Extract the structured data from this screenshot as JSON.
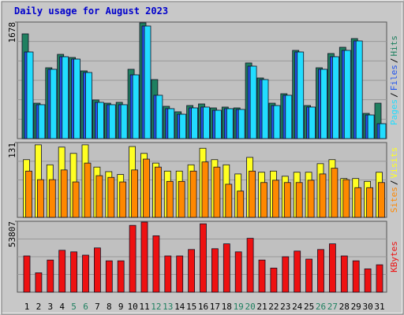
{
  "chart_data": [
    {
      "type": "bar",
      "title": "Daily usage for August 2023",
      "legend_separator": "/",
      "ylim": [
        0,
        1678
      ],
      "yticks": [
        1678
      ],
      "series": [
        {
          "name": "Pages",
          "color": "#22ddff",
          "values": [
            1247,
            488,
            998,
            1179,
            1145,
            952,
            522,
            488,
            488,
            918,
            1621,
            624,
            431,
            351,
            442,
            454,
            408,
            431,
            420,
            1043,
            850,
            476,
            624,
            1247,
            454,
            998,
            1179,
            1270,
            1406,
            340,
            215
          ]
        },
        {
          "name": "Files",
          "color": "#2255ee",
          "values": [
            1247,
            488,
            998,
            1179,
            1145,
            952,
            522,
            488,
            488,
            918,
            1621,
            624,
            431,
            351,
            442,
            454,
            408,
            431,
            420,
            1043,
            850,
            476,
            624,
            1247,
            454,
            998,
            1179,
            1270,
            1406,
            340,
            215
          ]
        },
        {
          "name": "Hits",
          "color": "#1f8060",
          "values": [
            1508,
            510,
            1020,
            1213,
            1168,
            975,
            556,
            510,
            522,
            998,
            1667,
            850,
            465,
            386,
            476,
            499,
            442,
            454,
            442,
            1089,
            873,
            510,
            646,
            1270,
            476,
            1020,
            1225,
            1315,
            1440,
            363,
            510
          ]
        }
      ]
    },
    {
      "type": "bar",
      "legend_separator": "/",
      "ylim": [
        0,
        131
      ],
      "yticks": [
        131
      ],
      "series": [
        {
          "name": "Sites",
          "color": "#ff8800",
          "values": [
            81,
            66,
            66,
            83,
            62,
            95,
            73,
            70,
            62,
            83,
            102,
            88,
            63,
            63,
            81,
            97,
            88,
            58,
            46,
            81,
            61,
            65,
            61,
            61,
            65,
            76,
            86,
            66,
            52,
            52,
            61
          ]
        },
        {
          "name": "Visits",
          "color": "#ffff22",
          "values": [
            101,
            127,
            92,
            123,
            112,
            127,
            88,
            80,
            75,
            124,
            112,
            95,
            81,
            81,
            92,
            121,
            101,
            92,
            76,
            105,
            79,
            81,
            72,
            79,
            79,
            94,
            101,
            68,
            68,
            63,
            79
          ]
        }
      ]
    },
    {
      "type": "bar",
      "ylim": [
        0,
        53807
      ],
      "yticks": [
        53807
      ],
      "categories": [
        "1",
        "2",
        "3",
        "4",
        "5",
        "6",
        "7",
        "8",
        "9",
        "10",
        "11",
        "12",
        "13",
        "14",
        "15",
        "16",
        "17",
        "18",
        "19",
        "20",
        "21",
        "22",
        "23",
        "24",
        "25",
        "26",
        "27",
        "28",
        "29",
        "30",
        "31"
      ],
      "category_colors": [
        "#000",
        "#000",
        "#000",
        "#000",
        "#1f8060",
        "#1f8060",
        "#000",
        "#000",
        "#000",
        "#000",
        "#000",
        "#1f8060",
        "#1f8060",
        "#000",
        "#000",
        "#000",
        "#000",
        "#000",
        "#1f8060",
        "#1f8060",
        "#000",
        "#000",
        "#000",
        "#000",
        "#000",
        "#1f8060",
        "#1f8060",
        "#000",
        "#000",
        "#000",
        "#000"
      ],
      "series": [
        {
          "name": "KBytes",
          "color": "#ee1111",
          "values": [
            27500,
            14700,
            24400,
            31800,
            30600,
            28100,
            33600,
            23800,
            23800,
            50700,
            53200,
            42800,
            27500,
            27500,
            32400,
            51900,
            33000,
            36700,
            30600,
            40900,
            24400,
            18300,
            26900,
            31200,
            25100,
            32400,
            36700,
            27500,
            23800,
            17700,
            20800
          ]
        }
      ]
    }
  ]
}
